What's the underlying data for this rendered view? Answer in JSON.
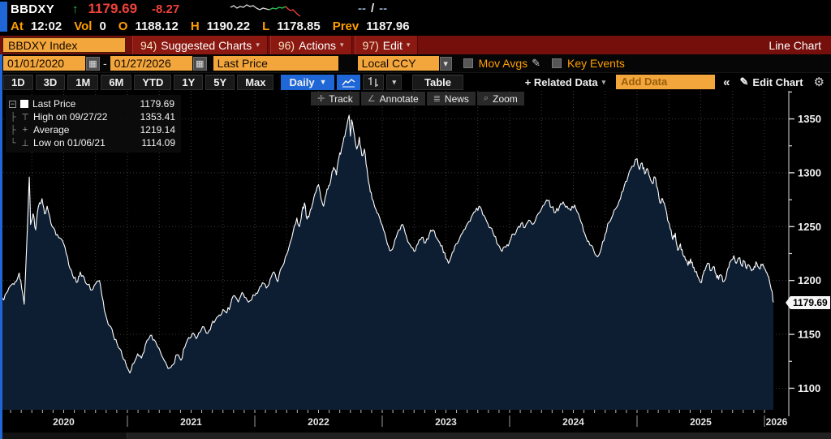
{
  "colors": {
    "amber": "#f3a63c",
    "amber_text": "#ff9e00",
    "maroon": "#750f0b",
    "blue": "#1f66d6",
    "up_green": "#2ec152",
    "down_red": "#f0413a",
    "chart_line": "#ffffff",
    "chart_fill": "#0d1e33",
    "grid": "#3b3b3b",
    "axis": "#d8d8d8"
  },
  "icons": {
    "caret_down": "▾",
    "caret_solid": "▼",
    "calendar": "▦",
    "pencil": "✎",
    "gear": "⚙",
    "collapse": "«",
    "expander_minus": "−",
    "tree_mid": "├",
    "tree_end": "└",
    "marker_high": "⊤",
    "marker_avg": "+",
    "marker_low": "⊥"
  },
  "header": {
    "ticker": "BBDXY",
    "arrow": "↑",
    "last": "1179.69",
    "change": "-8.27",
    "na_left": "--",
    "na_sep": "/",
    "na_right": "--",
    "stats": [
      {
        "label": "At",
        "value": "12:02"
      },
      {
        "label": "Vol",
        "value": "0"
      },
      {
        "label": "O",
        "value": "1188.12"
      },
      {
        "label": "H",
        "value": "1190.22"
      },
      {
        "label": "L",
        "value": "1178.85"
      },
      {
        "label": "Prev",
        "value": "1187.96"
      }
    ],
    "sparkline": {
      "white": [
        [
          0,
          8
        ],
        [
          4,
          6
        ],
        [
          8,
          9
        ],
        [
          12,
          7
        ],
        [
          16,
          8
        ],
        [
          20,
          5
        ],
        [
          24,
          7
        ],
        [
          28,
          6
        ],
        [
          32,
          9
        ],
        [
          36,
          11
        ],
        [
          40,
          9
        ],
        [
          44,
          10
        ],
        [
          48,
          11
        ]
      ],
      "green": [
        [
          48,
          11
        ],
        [
          52,
          9
        ],
        [
          56,
          10
        ],
        [
          60,
          8
        ],
        [
          64,
          9
        ],
        [
          68,
          7
        ]
      ],
      "red": [
        [
          68,
          7
        ],
        [
          71,
          10
        ],
        [
          74,
          12
        ],
        [
          77,
          11
        ],
        [
          80,
          14
        ],
        [
          83,
          17
        ],
        [
          86,
          19
        ]
      ]
    }
  },
  "command_bar": {
    "security": "BBDXY Index",
    "menus": [
      {
        "num": "94)",
        "label": "Suggested Charts"
      },
      {
        "num": "96)",
        "label": "Actions"
      },
      {
        "num": "97)",
        "label": "Edit"
      }
    ],
    "right_label": "Line Chart"
  },
  "settings_bar": {
    "date_from": "01/01/2020",
    "date_sep": "-",
    "date_to": "01/27/2026",
    "field_type": "Last Price",
    "currency": "Local CCY",
    "mov_avgs": "Mov Avgs",
    "key_events": "Key Events"
  },
  "period_bar": {
    "periods": [
      "1D",
      "3D",
      "1M",
      "6M",
      "YTD",
      "1Y",
      "5Y",
      "Max"
    ],
    "frequency": "Daily",
    "table": "Table",
    "related_data": "+ Related Data",
    "add_data_placeholder": "Add Data",
    "edit_chart": "Edit Chart"
  },
  "chart": {
    "legend": [
      {
        "label": "Last Price",
        "value": "1179.69"
      },
      {
        "label": "High on 09/27/22",
        "value": "1353.41"
      },
      {
        "label": "Average",
        "value": "1219.14"
      },
      {
        "label": "Low on 01/06/21",
        "value": "1114.09"
      }
    ],
    "tools": [
      {
        "icon": "✛",
        "label": "Track"
      },
      {
        "icon": "∠",
        "label": "Annotate"
      },
      {
        "icon": "≣",
        "label": "News"
      },
      {
        "icon": "⌕",
        "label": "Zoom"
      }
    ],
    "price_tag": "1179.69"
  },
  "chart_data": {
    "type": "area",
    "title": "BBDXY Index - Line Chart",
    "ylabel": "",
    "xlabel": "",
    "grid": "dotted",
    "legend_position": "top-left",
    "ylim": [
      1080,
      1376
    ],
    "yticks": [
      1100,
      1150,
      1200,
      1250,
      1300,
      1350
    ],
    "x_years": [
      2020,
      2021,
      2022,
      2023,
      2024,
      2025,
      2026
    ],
    "last_price": 1179.69,
    "high": {
      "date": "09/27/22",
      "value": 1353.41
    },
    "average": 1219.14,
    "low": {
      "date": "01/06/21",
      "value": 1114.09
    },
    "series": [
      {
        "name": "Last Price",
        "points": [
          [
            2020.0,
            1186
          ],
          [
            2020.03,
            1182
          ],
          [
            2020.06,
            1190
          ],
          [
            2020.09,
            1196
          ],
          [
            2020.12,
            1199
          ],
          [
            2020.15,
            1207
          ],
          [
            2020.17,
            1193
          ],
          [
            2020.19,
            1178
          ],
          [
            2020.21,
            1235
          ],
          [
            2020.23,
            1296
          ],
          [
            2020.24,
            1252
          ],
          [
            2020.26,
            1262
          ],
          [
            2020.28,
            1247
          ],
          [
            2020.3,
            1268
          ],
          [
            2020.33,
            1276
          ],
          [
            2020.35,
            1262
          ],
          [
            2020.37,
            1269
          ],
          [
            2020.4,
            1253
          ],
          [
            2020.43,
            1247
          ],
          [
            2020.46,
            1240
          ],
          [
            2020.49,
            1237
          ],
          [
            2020.52,
            1225
          ],
          [
            2020.55,
            1211
          ],
          [
            2020.58,
            1202
          ],
          [
            2020.61,
            1199
          ],
          [
            2020.63,
            1208
          ],
          [
            2020.66,
            1203
          ],
          [
            2020.69,
            1196
          ],
          [
            2020.72,
            1191
          ],
          [
            2020.75,
            1197
          ],
          [
            2020.78,
            1200
          ],
          [
            2020.8,
            1186
          ],
          [
            2020.83,
            1168
          ],
          [
            2020.86,
            1158
          ],
          [
            2020.89,
            1149
          ],
          [
            2020.92,
            1141
          ],
          [
            2020.95,
            1135
          ],
          [
            2020.98,
            1126
          ],
          [
            2021.02,
            1114.09
          ],
          [
            2021.05,
            1123
          ],
          [
            2021.08,
            1132
          ],
          [
            2021.11,
            1128
          ],
          [
            2021.14,
            1140
          ],
          [
            2021.18,
            1149
          ],
          [
            2021.21,
            1145
          ],
          [
            2021.24,
            1138
          ],
          [
            2021.27,
            1130
          ],
          [
            2021.3,
            1124
          ],
          [
            2021.33,
            1119
          ],
          [
            2021.36,
            1122
          ],
          [
            2021.39,
            1131
          ],
          [
            2021.42,
            1126
          ],
          [
            2021.45,
            1138
          ],
          [
            2021.48,
            1147
          ],
          [
            2021.51,
            1151
          ],
          [
            2021.54,
            1146
          ],
          [
            2021.57,
            1152
          ],
          [
            2021.6,
            1157
          ],
          [
            2021.63,
            1151
          ],
          [
            2021.66,
            1159
          ],
          [
            2021.69,
            1163
          ],
          [
            2021.72,
            1168
          ],
          [
            2021.75,
            1173
          ],
          [
            2021.78,
            1170
          ],
          [
            2021.81,
            1178
          ],
          [
            2021.84,
            1186
          ],
          [
            2021.87,
            1180
          ],
          [
            2021.9,
            1189
          ],
          [
            2021.93,
            1184
          ],
          [
            2021.96,
            1181
          ],
          [
            2022.0,
            1186
          ],
          [
            2022.03,
            1191
          ],
          [
            2022.06,
            1198
          ],
          [
            2022.09,
            1193
          ],
          [
            2022.12,
            1201
          ],
          [
            2022.15,
            1208
          ],
          [
            2022.18,
            1199
          ],
          [
            2022.21,
            1212
          ],
          [
            2022.24,
            1222
          ],
          [
            2022.27,
            1232
          ],
          [
            2022.3,
            1245
          ],
          [
            2022.33,
            1258
          ],
          [
            2022.35,
            1250
          ],
          [
            2022.37,
            1264
          ],
          [
            2022.39,
            1272
          ],
          [
            2022.41,
            1257
          ],
          [
            2022.43,
            1262
          ],
          [
            2022.45,
            1270
          ],
          [
            2022.47,
            1280
          ],
          [
            2022.5,
            1289
          ],
          [
            2022.52,
            1276
          ],
          [
            2022.54,
            1269
          ],
          [
            2022.56,
            1280
          ],
          [
            2022.58,
            1288
          ],
          [
            2022.6,
            1296
          ],
          [
            2022.62,
            1305
          ],
          [
            2022.64,
            1298
          ],
          [
            2022.66,
            1314
          ],
          [
            2022.68,
            1322
          ],
          [
            2022.7,
            1333
          ],
          [
            2022.72,
            1342
          ],
          [
            2022.74,
            1353.41
          ],
          [
            2022.75,
            1334
          ],
          [
            2022.76,
            1349
          ],
          [
            2022.78,
            1336
          ],
          [
            2022.8,
            1322
          ],
          [
            2022.82,
            1333
          ],
          [
            2022.84,
            1316
          ],
          [
            2022.86,
            1322
          ],
          [
            2022.88,
            1304
          ],
          [
            2022.9,
            1288
          ],
          [
            2022.92,
            1276
          ],
          [
            2022.95,
            1266
          ],
          [
            2022.98,
            1258
          ],
          [
            2023.01,
            1247
          ],
          [
            2023.04,
            1234
          ],
          [
            2023.07,
            1228
          ],
          [
            2023.1,
            1238
          ],
          [
            2023.13,
            1247
          ],
          [
            2023.16,
            1252
          ],
          [
            2023.19,
            1241
          ],
          [
            2023.22,
            1233
          ],
          [
            2023.25,
            1227
          ],
          [
            2023.28,
            1234
          ],
          [
            2023.31,
            1240
          ],
          [
            2023.34,
            1235
          ],
          [
            2023.37,
            1243
          ],
          [
            2023.4,
            1247
          ],
          [
            2023.43,
            1239
          ],
          [
            2023.46,
            1232
          ],
          [
            2023.49,
            1226
          ],
          [
            2023.52,
            1216
          ],
          [
            2023.55,
            1226
          ],
          [
            2023.58,
            1234
          ],
          [
            2023.61,
            1240
          ],
          [
            2023.64,
            1247
          ],
          [
            2023.67,
            1253
          ],
          [
            2023.7,
            1259
          ],
          [
            2023.73,
            1264
          ],
          [
            2023.76,
            1269
          ],
          [
            2023.79,
            1261
          ],
          [
            2023.82,
            1255
          ],
          [
            2023.85,
            1249
          ],
          [
            2023.88,
            1241
          ],
          [
            2023.91,
            1233
          ],
          [
            2023.94,
            1227
          ],
          [
            2023.97,
            1231
          ],
          [
            2024.0,
            1236
          ],
          [
            2024.03,
            1243
          ],
          [
            2024.06,
            1248
          ],
          [
            2024.09,
            1253
          ],
          [
            2024.12,
            1249
          ],
          [
            2024.15,
            1256
          ],
          [
            2024.18,
            1252
          ],
          [
            2024.21,
            1259
          ],
          [
            2024.24,
            1264
          ],
          [
            2024.27,
            1270
          ],
          [
            2024.3,
            1274
          ],
          [
            2024.33,
            1268
          ],
          [
            2024.36,
            1263
          ],
          [
            2024.39,
            1268
          ],
          [
            2024.42,
            1273
          ],
          [
            2024.45,
            1269
          ],
          [
            2024.48,
            1265
          ],
          [
            2024.51,
            1270
          ],
          [
            2024.54,
            1262
          ],
          [
            2024.57,
            1252
          ],
          [
            2024.6,
            1240
          ],
          [
            2024.63,
            1233
          ],
          [
            2024.66,
            1228
          ],
          [
            2024.69,
            1222
          ],
          [
            2024.72,
            1230
          ],
          [
            2024.75,
            1243
          ],
          [
            2024.78,
            1254
          ],
          [
            2024.81,
            1261
          ],
          [
            2024.84,
            1268
          ],
          [
            2024.87,
            1276
          ],
          [
            2024.9,
            1288
          ],
          [
            2024.93,
            1297
          ],
          [
            2024.96,
            1306
          ],
          [
            2025.0,
            1313
          ],
          [
            2025.02,
            1303
          ],
          [
            2025.04,
            1309
          ],
          [
            2025.06,
            1299
          ],
          [
            2025.08,
            1304
          ],
          [
            2025.1,
            1296
          ],
          [
            2025.12,
            1290
          ],
          [
            2025.14,
            1296
          ],
          [
            2025.16,
            1286
          ],
          [
            2025.18,
            1272
          ],
          [
            2025.2,
            1276
          ],
          [
            2025.22,
            1269
          ],
          [
            2025.24,
            1256
          ],
          [
            2025.26,
            1248
          ],
          [
            2025.28,
            1238
          ],
          [
            2025.3,
            1244
          ],
          [
            2025.32,
            1228
          ],
          [
            2025.34,
            1234
          ],
          [
            2025.36,
            1224
          ],
          [
            2025.38,
            1219
          ],
          [
            2025.4,
            1214
          ],
          [
            2025.42,
            1220
          ],
          [
            2025.44,
            1212
          ],
          [
            2025.46,
            1208
          ],
          [
            2025.48,
            1203
          ],
          [
            2025.5,
            1198
          ],
          [
            2025.52,
            1206
          ],
          [
            2025.54,
            1212
          ],
          [
            2025.56,
            1216
          ],
          [
            2025.58,
            1209
          ],
          [
            2025.6,
            1213
          ],
          [
            2025.62,
            1206
          ],
          [
            2025.64,
            1201
          ],
          [
            2025.66,
            1205
          ],
          [
            2025.68,
            1199
          ],
          [
            2025.7,
            1204
          ],
          [
            2025.72,
            1212
          ],
          [
            2025.74,
            1219
          ],
          [
            2025.76,
            1223
          ],
          [
            2025.78,
            1216
          ],
          [
            2025.8,
            1221
          ],
          [
            2025.82,
            1214
          ],
          [
            2025.84,
            1218
          ],
          [
            2025.86,
            1211
          ],
          [
            2025.88,
            1214
          ],
          [
            2025.9,
            1209
          ],
          [
            2025.92,
            1213
          ],
          [
            2025.94,
            1216
          ],
          [
            2025.96,
            1211
          ],
          [
            2025.98,
            1214
          ],
          [
            2026.0,
            1211
          ],
          [
            2026.02,
            1207
          ],
          [
            2026.04,
            1199
          ],
          [
            2026.06,
            1190
          ],
          [
            2026.07,
            1179.69
          ]
        ]
      }
    ]
  }
}
